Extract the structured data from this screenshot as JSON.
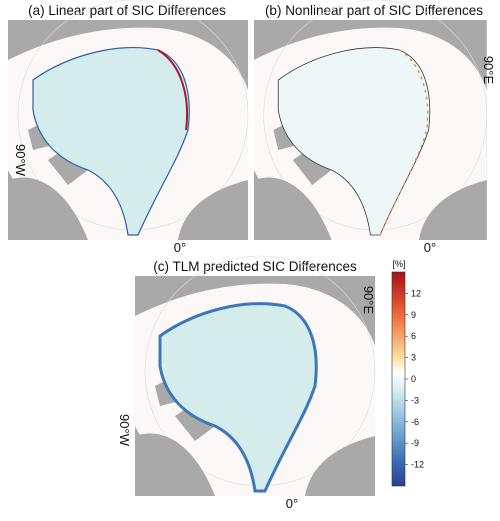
{
  "panels": [
    {
      "title": "(a) Linear part of SIC Differences",
      "labels": [
        "90°W",
        "0°"
      ]
    },
    {
      "title": "(b) Nonlinear part of SIC Differences",
      "labels": [
        "90°E",
        "0°"
      ]
    },
    {
      "title": "(c) TLM predicted SIC Differences",
      "labels": [
        "90°E",
        "90°W",
        "0°"
      ]
    }
  ],
  "colorbar": {
    "unit": "[%]",
    "lim": [
      -15,
      15
    ],
    "ticks": [
      12,
      9,
      6,
      3,
      0,
      -3,
      -6,
      -9,
      -12
    ]
  }
}
